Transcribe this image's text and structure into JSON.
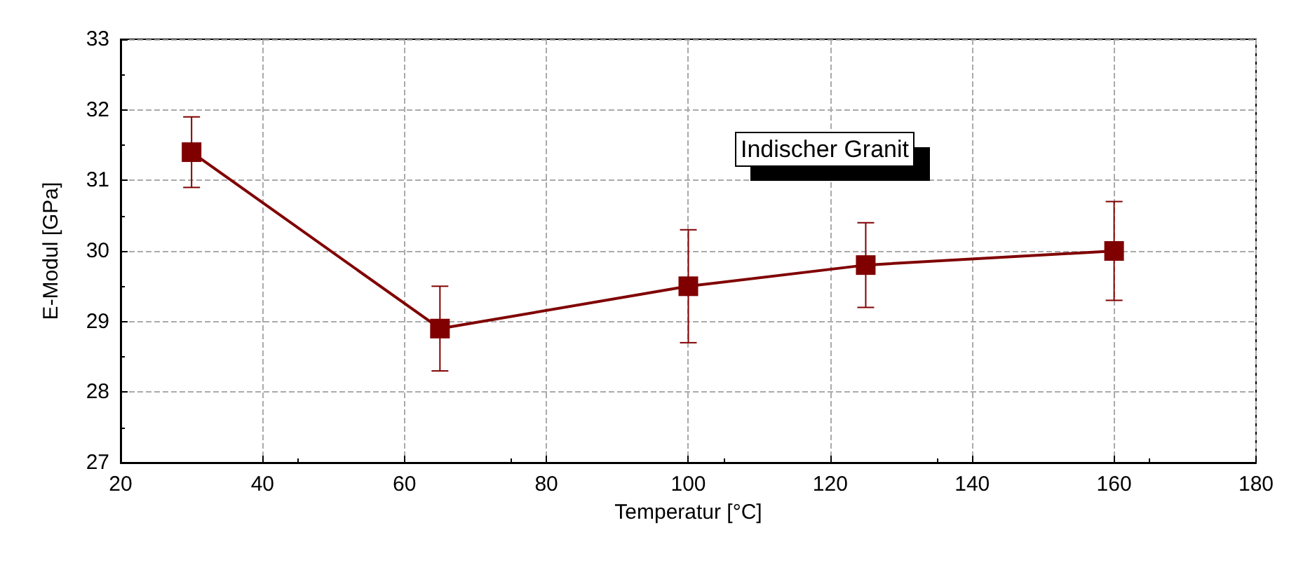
{
  "chart_data": {
    "type": "line",
    "xlabel": "Temperatur [°C]",
    "ylabel": "E-Modul [GPa]",
    "annotations": [
      "Indischer Granit"
    ],
    "x": [
      30,
      65,
      100,
      125,
      160
    ],
    "series": [
      {
        "color": "#800000",
        "values": [
          31.4,
          28.9,
          29.5,
          29.8,
          30.0
        ],
        "errors": [
          0.5,
          0.6,
          0.8,
          0.6,
          0.7
        ]
      }
    ],
    "xlim": [
      20,
      180
    ],
    "xticks": [
      20,
      40,
      60,
      80,
      100,
      120,
      140,
      160,
      180
    ],
    "ylim": [
      27,
      33
    ],
    "yticks": [
      27,
      28,
      29,
      30,
      31,
      32,
      33
    ],
    "grid": true,
    "marker": "square",
    "line_style": "solid"
  }
}
